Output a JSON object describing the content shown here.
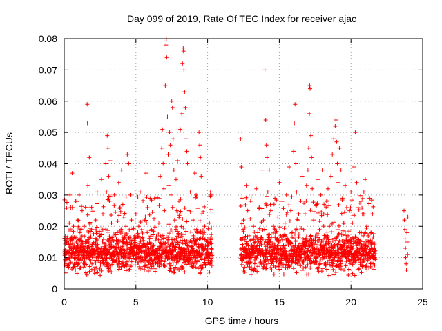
{
  "chart_data": {
    "type": "scatter",
    "title": "Day 099 of 2019, Rate Of TEC Index for receiver ajac",
    "xlabel": "GPS time / hours",
    "ylabel": "ROTI / TECUs",
    "xlim": [
      0,
      25
    ],
    "ylim": [
      0,
      0.08
    ],
    "x_ticks": [
      0,
      5,
      10,
      15,
      20,
      25
    ],
    "y_ticks": [
      0,
      0.01,
      0.02,
      0.03,
      0.04,
      0.05,
      0.06,
      0.07,
      0.08
    ],
    "x_tick_labels": [
      "0",
      "5",
      "10",
      "15",
      "20",
      "25"
    ],
    "y_tick_labels": [
      "0",
      "0.01",
      "0.02",
      "0.03",
      "0.04",
      "0.05",
      "0.06",
      "0.07",
      "0.08"
    ],
    "grid": true,
    "marker": "+",
    "color": "#ff0000",
    "points": [
      [
        0.05,
        0.009
      ],
      [
        0.1,
        0.016
      ],
      [
        0.2,
        0.012
      ],
      [
        0.3,
        0.007
      ],
      [
        0.35,
        0.021
      ],
      [
        0.4,
        0.03
      ],
      [
        0.45,
        0.026
      ],
      [
        0.5,
        0.013
      ],
      [
        0.55,
        0.037
      ],
      [
        0.6,
        0.01
      ],
      [
        0.65,
        0.02
      ],
      [
        0.7,
        0.008
      ],
      [
        0.8,
        0.028
      ],
      [
        0.85,
        0.015
      ],
      [
        0.9,
        0.005
      ],
      [
        0.95,
        0.022
      ],
      [
        1.0,
        0.011
      ],
      [
        1.05,
        0.03
      ],
      [
        1.1,
        0.018
      ],
      [
        1.2,
        0.009
      ],
      [
        1.25,
        0.025
      ],
      [
        1.3,
        0.014
      ],
      [
        1.35,
        0.007
      ],
      [
        1.4,
        0.02
      ],
      [
        1.5,
        0.012
      ],
      [
        1.6,
        0.059
      ],
      [
        1.62,
        0.053
      ],
      [
        1.65,
        0.033
      ],
      [
        1.7,
        0.015
      ],
      [
        1.75,
        0.042
      ],
      [
        1.8,
        0.026
      ],
      [
        1.85,
        0.009
      ],
      [
        1.9,
        0.019
      ],
      [
        2.0,
        0.013
      ],
      [
        2.1,
        0.006
      ],
      [
        2.2,
        0.022
      ],
      [
        2.3,
        0.031
      ],
      [
        2.4,
        0.011
      ],
      [
        2.5,
        0.017
      ],
      [
        2.6,
        0.035
      ],
      [
        2.7,
        0.024
      ],
      [
        2.8,
        0.014
      ],
      [
        2.9,
        0.04
      ],
      [
        2.95,
        0.031
      ],
      [
        3.0,
        0.049
      ],
      [
        3.05,
        0.045
      ],
      [
        3.1,
        0.036
      ],
      [
        3.15,
        0.028
      ],
      [
        3.2,
        0.041
      ],
      [
        3.3,
        0.021
      ],
      [
        3.4,
        0.013
      ],
      [
        3.5,
        0.03
      ],
      [
        3.6,
        0.009
      ],
      [
        3.7,
        0.018
      ],
      [
        3.8,
        0.034
      ],
      [
        3.9,
        0.026
      ],
      [
        4.0,
        0.038
      ],
      [
        4.1,
        0.015
      ],
      [
        4.2,
        0.01
      ],
      [
        4.3,
        0.02
      ],
      [
        4.4,
        0.043
      ],
      [
        4.5,
        0.04
      ],
      [
        4.6,
        0.03
      ],
      [
        4.7,
        0.022
      ],
      [
        4.8,
        0.012
      ],
      [
        4.9,
        0.016
      ],
      [
        5.0,
        0.024
      ],
      [
        5.1,
        0.011
      ],
      [
        5.2,
        0.02
      ],
      [
        5.3,
        0.031
      ],
      [
        5.4,
        0.014
      ],
      [
        5.5,
        0.009
      ],
      [
        5.6,
        0.022
      ],
      [
        5.7,
        0.037
      ],
      [
        5.8,
        0.026
      ],
      [
        5.9,
        0.013
      ],
      [
        6.0,
        0.008
      ],
      [
        6.1,
        0.019
      ],
      [
        6.2,
        0.012
      ],
      [
        6.3,
        0.029
      ],
      [
        6.4,
        0.016
      ],
      [
        6.5,
        0.01
      ],
      [
        6.6,
        0.021
      ],
      [
        6.7,
        0.036
      ],
      [
        6.8,
        0.045
      ],
      [
        6.85,
        0.051
      ],
      [
        6.9,
        0.04
      ],
      [
        6.95,
        0.032
      ],
      [
        7.0,
        0.025
      ],
      [
        7.05,
        0.065
      ],
      [
        7.1,
        0.078
      ],
      [
        7.12,
        0.08
      ],
      [
        7.15,
        0.074
      ],
      [
        7.2,
        0.055
      ],
      [
        7.25,
        0.043
      ],
      [
        7.3,
        0.033
      ],
      [
        7.35,
        0.05
      ],
      [
        7.4,
        0.046
      ],
      [
        7.45,
        0.03
      ],
      [
        7.5,
        0.06
      ],
      [
        7.55,
        0.058
      ],
      [
        7.6,
        0.048
      ],
      [
        7.65,
        0.038
      ],
      [
        7.7,
        0.022
      ],
      [
        7.8,
        0.035
      ],
      [
        7.9,
        0.041
      ],
      [
        8.0,
        0.028
      ],
      [
        8.1,
        0.051
      ],
      [
        8.2,
        0.056
      ],
      [
        8.25,
        0.072
      ],
      [
        8.3,
        0.077
      ],
      [
        8.32,
        0.076
      ],
      [
        8.35,
        0.07
      ],
      [
        8.4,
        0.063
      ],
      [
        8.45,
        0.058
      ],
      [
        8.5,
        0.048
      ],
      [
        8.55,
        0.044
      ],
      [
        8.6,
        0.04
      ],
      [
        8.7,
        0.025
      ],
      [
        8.8,
        0.031
      ],
      [
        8.9,
        0.015
      ],
      [
        9.0,
        0.022
      ],
      [
        9.1,
        0.037
      ],
      [
        9.2,
        0.03
      ],
      [
        9.3,
        0.018
      ],
      [
        9.4,
        0.05
      ],
      [
        9.45,
        0.046
      ],
      [
        9.5,
        0.042
      ],
      [
        9.55,
        0.036
      ],
      [
        9.6,
        0.024
      ],
      [
        9.7,
        0.013
      ],
      [
        9.8,
        0.02
      ],
      [
        9.9,
        0.009
      ],
      [
        10.0,
        0.014
      ],
      [
        10.1,
        0.021
      ],
      [
        10.2,
        0.031
      ],
      [
        10.25,
        0.03
      ],
      [
        12.3,
        0.048
      ],
      [
        12.35,
        0.039
      ],
      [
        12.4,
        0.029
      ],
      [
        12.5,
        0.022
      ],
      [
        12.6,
        0.013
      ],
      [
        12.7,
        0.033
      ],
      [
        12.8,
        0.025
      ],
      [
        12.9,
        0.017
      ],
      [
        13.0,
        0.028
      ],
      [
        13.1,
        0.012
      ],
      [
        13.2,
        0.02
      ],
      [
        13.3,
        0.009
      ],
      [
        13.4,
        0.032
      ],
      [
        13.5,
        0.018
      ],
      [
        13.6,
        0.026
      ],
      [
        13.7,
        0.015
      ],
      [
        13.8,
        0.038
      ],
      [
        13.9,
        0.022
      ],
      [
        14.0,
        0.07
      ],
      [
        14.05,
        0.054
      ],
      [
        14.1,
        0.046
      ],
      [
        14.15,
        0.042
      ],
      [
        14.2,
        0.031
      ],
      [
        14.3,
        0.038
      ],
      [
        14.4,
        0.025
      ],
      [
        14.5,
        0.014
      ],
      [
        14.6,
        0.02
      ],
      [
        14.7,
        0.029
      ],
      [
        14.8,
        0.011
      ],
      [
        14.9,
        0.023
      ],
      [
        15.0,
        0.034
      ],
      [
        15.1,
        0.017
      ],
      [
        15.2,
        0.028
      ],
      [
        15.3,
        0.012
      ],
      [
        15.4,
        0.021
      ],
      [
        15.5,
        0.03
      ],
      [
        15.6,
        0.015
      ],
      [
        15.7,
        0.039
      ],
      [
        15.8,
        0.025
      ],
      [
        15.9,
        0.018
      ],
      [
        16.0,
        0.044
      ],
      [
        16.05,
        0.053
      ],
      [
        16.1,
        0.059
      ],
      [
        16.15,
        0.04
      ],
      [
        16.2,
        0.031
      ],
      [
        16.3,
        0.022
      ],
      [
        16.4,
        0.013
      ],
      [
        16.5,
        0.028
      ],
      [
        16.6,
        0.036
      ],
      [
        16.7,
        0.019
      ],
      [
        16.8,
        0.024
      ],
      [
        16.9,
        0.033
      ],
      [
        17.0,
        0.038
      ],
      [
        17.05,
        0.045
      ],
      [
        17.1,
        0.056
      ],
      [
        17.12,
        0.065
      ],
      [
        17.15,
        0.064
      ],
      [
        17.2,
        0.049
      ],
      [
        17.25,
        0.042
      ],
      [
        17.3,
        0.032
      ],
      [
        17.4,
        0.022
      ],
      [
        17.5,
        0.016
      ],
      [
        17.6,
        0.027
      ],
      [
        17.7,
        0.035
      ],
      [
        17.8,
        0.019
      ],
      [
        17.9,
        0.03
      ],
      [
        18.0,
        0.038
      ],
      [
        18.1,
        0.024
      ],
      [
        18.2,
        0.014
      ],
      [
        18.3,
        0.028
      ],
      [
        18.4,
        0.032
      ],
      [
        18.5,
        0.02
      ],
      [
        18.6,
        0.036
      ],
      [
        18.7,
        0.043
      ],
      [
        18.8,
        0.048
      ],
      [
        18.9,
        0.052
      ],
      [
        18.95,
        0.054
      ],
      [
        19.0,
        0.047
      ],
      [
        19.05,
        0.04
      ],
      [
        19.1,
        0.034
      ],
      [
        19.2,
        0.045
      ],
      [
        19.3,
        0.038
      ],
      [
        19.4,
        0.029
      ],
      [
        19.5,
        0.021
      ],
      [
        19.6,
        0.033
      ],
      [
        19.7,
        0.026
      ],
      [
        19.8,
        0.017
      ],
      [
        19.9,
        0.025
      ],
      [
        20.0,
        0.031
      ],
      [
        20.1,
        0.021
      ],
      [
        20.2,
        0.039
      ],
      [
        20.3,
        0.05
      ],
      [
        20.4,
        0.034
      ],
      [
        20.5,
        0.026
      ],
      [
        20.6,
        0.018
      ],
      [
        20.7,
        0.028
      ],
      [
        20.8,
        0.024
      ],
      [
        20.9,
        0.031
      ],
      [
        21.0,
        0.035
      ],
      [
        21.1,
        0.02
      ],
      [
        21.2,
        0.014
      ],
      [
        21.3,
        0.029
      ],
      [
        21.4,
        0.018
      ],
      [
        21.5,
        0.024
      ],
      [
        21.6,
        0.013
      ],
      [
        21.65,
        0.012
      ],
      [
        23.7,
        0.025
      ],
      [
        23.72,
        0.022
      ],
      [
        23.75,
        0.019
      ],
      [
        23.78,
        0.016
      ],
      [
        23.8,
        0.013
      ],
      [
        23.82,
        0.01
      ],
      [
        23.85,
        0.008
      ],
      [
        23.87,
        0.006
      ],
      [
        23.9,
        0.018
      ],
      [
        23.92,
        0.015
      ],
      [
        23.95,
        0.011
      ],
      [
        23.97,
        0.023
      ]
    ],
    "dense_bands": [
      {
        "x": [
          0,
          10.3
        ],
        "ylow": [
          0.004,
          0.012
        ],
        "yhigh": [
          0.011,
          0.02
        ]
      },
      {
        "x": [
          12.3,
          21.7
        ],
        "ylow": [
          0.004,
          0.012
        ],
        "yhigh": [
          0.011,
          0.02
        ]
      }
    ]
  }
}
